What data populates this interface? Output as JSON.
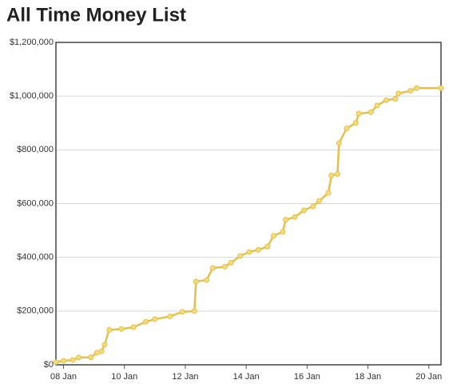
{
  "chart_data": {
    "type": "line",
    "title": "All Time Money List",
    "color": "#e3c04e",
    "x": [
      7.75,
      8.0,
      8.3,
      8.5,
      8.9,
      9.1,
      9.25,
      9.35,
      9.5,
      9.9,
      10.3,
      10.7,
      11.0,
      11.5,
      11.9,
      12.3,
      12.35,
      12.7,
      12.9,
      13.3,
      13.5,
      13.8,
      14.1,
      14.4,
      14.7,
      14.9,
      15.2,
      15.3,
      15.6,
      15.9,
      16.2,
      16.4,
      16.7,
      16.8,
      17.0,
      17.05,
      17.3,
      17.6,
      17.7,
      18.1,
      18.3,
      18.6,
      18.9,
      19.0,
      19.4,
      19.6,
      20.4
    ],
    "values": [
      10000,
      15000,
      18000,
      27000,
      28000,
      45000,
      50000,
      75000,
      130000,
      133000,
      140000,
      160000,
      170000,
      180000,
      197000,
      200000,
      310000,
      315000,
      360000,
      365000,
      380000,
      405000,
      420000,
      428000,
      440000,
      480000,
      495000,
      540000,
      550000,
      575000,
      590000,
      610000,
      640000,
      705000,
      710000,
      825000,
      880000,
      900000,
      935000,
      940000,
      965000,
      985000,
      990000,
      1010000,
      1020000,
      1030000,
      1030000
    ],
    "xlim": [
      7.75,
      20.4
    ],
    "xticks": [
      {
        "value": 8,
        "label": "08 Jan"
      },
      {
        "value": 10,
        "label": "10 Jan"
      },
      {
        "value": 12,
        "label": "12 Jan"
      },
      {
        "value": 14,
        "label": "14 Jan"
      },
      {
        "value": 16,
        "label": "16 Jan"
      },
      {
        "value": 18,
        "label": "18 Jan"
      },
      {
        "value": 20,
        "label": "20 Jan"
      }
    ],
    "ylim": [
      0,
      1200000
    ],
    "yticks": [
      {
        "value": 0,
        "label": "$0"
      },
      {
        "value": 200000,
        "label": "$200,000"
      },
      {
        "value": 400000,
        "label": "$400,000"
      },
      {
        "value": 600000,
        "label": "$600,000"
      },
      {
        "value": 800000,
        "label": "$800,000"
      },
      {
        "value": 1000000,
        "label": "$1,000,000"
      },
      {
        "value": 1200000,
        "label": "$1,200,000"
      }
    ],
    "grid": true
  }
}
